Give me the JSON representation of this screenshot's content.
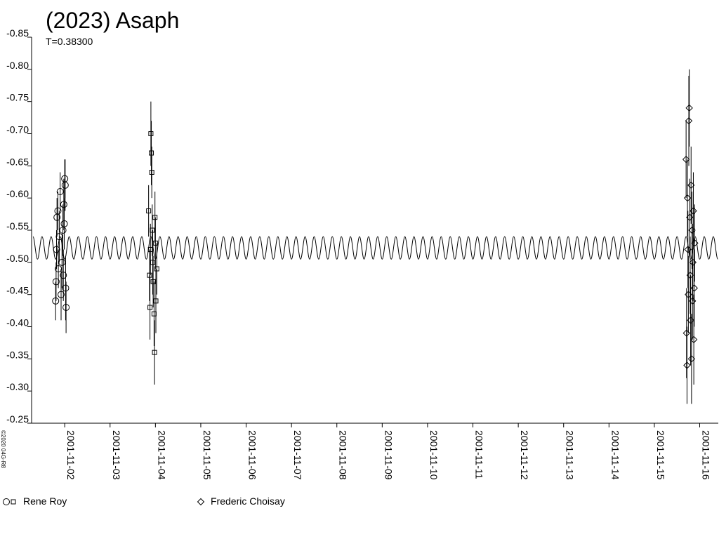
{
  "chart_data": {
    "type": "scatter",
    "title": "(2023) Asaph",
    "subtitle": "T=0.38300",
    "credit": "©2020 04G-R8",
    "xlim": [
      1.27,
      16.41
    ],
    "ylim": [
      -0.25,
      -0.85
    ],
    "xticks": [
      {
        "value": 2,
        "label": "2001-11-02"
      },
      {
        "value": 3,
        "label": "2001-11-03"
      },
      {
        "value": 4,
        "label": "2001-11-04"
      },
      {
        "value": 5,
        "label": "2001-11-05"
      },
      {
        "value": 6,
        "label": "2001-11-06"
      },
      {
        "value": 7,
        "label": "2001-11-07"
      },
      {
        "value": 8,
        "label": "2001-11-08"
      },
      {
        "value": 9,
        "label": "2001-11-09"
      },
      {
        "value": 10,
        "label": "2001-11-10"
      },
      {
        "value": 11,
        "label": "2001-11-11"
      },
      {
        "value": 12,
        "label": "2001-11-12"
      },
      {
        "value": 13,
        "label": "2001-11-13"
      },
      {
        "value": 14,
        "label": "2001-11-14"
      },
      {
        "value": 15,
        "label": "2001-11-15"
      },
      {
        "value": 16,
        "label": "2001-11-16"
      }
    ],
    "yticks": [
      -0.85,
      {
        "value": -0.8,
        "label": "-0.80"
      },
      -0.75,
      {
        "value": -0.7,
        "label": "-0.70"
      },
      -0.65,
      {
        "value": -0.6,
        "label": "-0.60"
      },
      -0.55,
      {
        "value": -0.5,
        "label": "-0.50"
      },
      -0.45,
      {
        "value": -0.4,
        "label": "-0.40"
      },
      -0.35,
      {
        "value": -0.3,
        "label": "-0.30"
      },
      -0.25
    ],
    "grid": false,
    "color": "#000000",
    "series": [
      {
        "name": "Rene Roy",
        "markers": [
          "circle",
          "circle",
          "circle",
          "circle",
          "circle",
          "circle",
          "circle",
          "circle",
          "circle",
          "circle",
          "circle",
          "circle",
          "circle",
          "circle",
          "circle",
          "circle",
          "circle",
          "circle",
          "square",
          "square",
          "square",
          "square",
          "square",
          "square",
          "square",
          "square",
          "square",
          "square",
          "square",
          "square",
          "square",
          "square",
          "square",
          "square"
        ],
        "x": [
          1.8,
          1.81,
          1.82,
          1.83,
          1.85,
          1.86,
          1.88,
          1.9,
          1.92,
          1.94,
          1.96,
          1.98,
          2.0,
          2.01,
          2.02,
          2.03,
          1.97,
          1.99,
          3.85,
          3.87,
          3.88,
          3.89,
          3.9,
          3.91,
          3.92,
          3.93,
          3.94,
          3.95,
          3.97,
          3.98,
          3.99,
          4.0,
          4.01,
          4.03
        ],
        "values": [
          -0.44,
          -0.47,
          -0.52,
          -0.57,
          -0.58,
          -0.49,
          -0.54,
          -0.61,
          -0.45,
          -0.5,
          -0.55,
          -0.59,
          -0.63,
          -0.62,
          -0.46,
          -0.43,
          -0.48,
          -0.56,
          -0.58,
          -0.48,
          -0.43,
          -0.52,
          -0.7,
          -0.67,
          -0.64,
          -0.55,
          -0.5,
          -0.47,
          -0.42,
          -0.36,
          -0.57,
          -0.53,
          -0.44,
          -0.49
        ],
        "errors": [
          0.03,
          0.03,
          0.03,
          0.03,
          0.03,
          0.03,
          0.04,
          0.03,
          0.04,
          0.04,
          0.04,
          0.04,
          0.03,
          0.04,
          0.05,
          0.04,
          0.04,
          0.04,
          0.04,
          0.04,
          0.05,
          0.04,
          0.05,
          0.05,
          0.04,
          0.04,
          0.05,
          0.04,
          0.05,
          0.05,
          0.04,
          0.04,
          0.05,
          0.04
        ]
      },
      {
        "name": "Frederic Choisay",
        "marker": "diamond",
        "x": [
          15.7,
          15.71,
          15.72,
          15.73,
          15.74,
          15.75,
          15.76,
          15.77,
          15.78,
          15.79,
          15.8,
          15.81,
          15.82,
          15.83,
          15.84,
          15.85,
          15.86,
          15.87,
          15.88,
          15.89
        ],
        "values": [
          -0.66,
          -0.39,
          -0.34,
          -0.6,
          -0.52,
          -0.45,
          -0.72,
          -0.74,
          -0.57,
          -0.48,
          -0.41,
          -0.62,
          -0.35,
          -0.55,
          -0.44,
          -0.5,
          -0.58,
          -0.38,
          -0.46,
          -0.53
        ],
        "errors": [
          0.06,
          0.07,
          0.06,
          0.06,
          0.06,
          0.06,
          0.07,
          0.06,
          0.06,
          0.06,
          0.07,
          0.06,
          0.07,
          0.06,
          0.06,
          0.06,
          0.06,
          0.07,
          0.06,
          0.06
        ]
      }
    ],
    "fit": {
      "x": [
        1.3,
        1.4,
        1.5,
        1.6,
        1.7,
        1.8,
        1.9,
        2.0,
        2.1,
        2.2,
        2.3,
        2.4,
        2.5,
        2.6,
        2.7,
        2.8,
        2.9,
        3.0,
        3.1,
        3.2,
        3.3,
        3.4,
        3.5,
        3.6,
        3.7,
        3.8,
        3.9,
        4.0,
        4.1,
        4.2,
        4.3,
        4.4,
        4.5,
        4.6,
        4.7,
        4.8,
        4.9,
        5.0,
        5.1,
        5.2,
        5.3,
        5.4,
        5.5,
        5.6,
        5.7,
        5.8,
        5.9,
        6.0,
        6.1,
        6.2,
        6.3,
        6.4,
        6.5,
        6.6,
        6.7,
        6.8,
        6.9,
        7.0,
        7.1,
        7.2,
        7.3,
        7.4,
        7.5,
        7.6,
        7.7,
        7.8,
        7.9,
        8.0,
        8.1,
        8.2,
        8.3,
        8.4,
        8.5,
        8.6,
        8.7,
        8.8,
        8.9,
        9.0,
        9.1,
        9.2,
        9.3,
        9.4,
        9.5,
        9.6,
        9.7,
        9.8,
        9.9,
        10.0,
        10.1,
        10.2,
        10.3,
        10.4,
        10.5,
        10.6,
        10.7,
        10.8,
        10.9,
        11.0,
        11.1,
        11.2,
        11.3,
        11.4,
        11.5,
        11.6,
        11.7,
        11.8,
        11.9,
        12.0,
        12.1,
        12.2,
        12.3,
        12.4,
        12.5,
        12.6,
        12.7,
        12.8,
        12.9,
        13.0,
        13.1,
        13.2,
        13.3,
        13.4,
        13.5,
        13.6,
        13.7,
        13.8,
        13.9,
        14.0,
        14.1,
        14.2,
        14.3,
        14.4,
        14.5,
        14.6,
        14.7,
        14.8,
        14.9,
        15.0,
        15.1,
        15.2,
        15.3,
        15.4,
        15.5,
        15.6,
        15.7,
        15.8,
        15.9,
        16.0,
        16.1,
        16.2,
        16.3,
        16.4
      ],
      "values": [
        -0.54,
        -0.505,
        -0.54,
        -0.505,
        -0.54,
        -0.505,
        -0.54,
        -0.505,
        -0.54,
        -0.505,
        -0.54,
        -0.505,
        -0.54,
        -0.505,
        -0.54,
        -0.505,
        -0.54,
        -0.505,
        -0.54,
        -0.505,
        -0.54,
        -0.505,
        -0.54,
        -0.505,
        -0.54,
        -0.505,
        -0.54,
        -0.505,
        -0.54,
        -0.505,
        -0.54,
        -0.505,
        -0.54,
        -0.505,
        -0.54,
        -0.505,
        -0.54,
        -0.505,
        -0.54,
        -0.505,
        -0.54,
        -0.505,
        -0.54,
        -0.505,
        -0.54,
        -0.505,
        -0.54,
        -0.505,
        -0.54,
        -0.505,
        -0.54,
        -0.505,
        -0.54,
        -0.505,
        -0.54,
        -0.505,
        -0.54,
        -0.505,
        -0.54,
        -0.505,
        -0.54,
        -0.505,
        -0.54,
        -0.505,
        -0.54,
        -0.505,
        -0.54,
        -0.505,
        -0.54,
        -0.505,
        -0.54,
        -0.505,
        -0.54,
        -0.505,
        -0.54,
        -0.505,
        -0.54,
        -0.505,
        -0.54,
        -0.505,
        -0.54,
        -0.505,
        -0.54,
        -0.505,
        -0.54,
        -0.505,
        -0.54,
        -0.505,
        -0.54,
        -0.505,
        -0.54,
        -0.505,
        -0.54,
        -0.505,
        -0.54,
        -0.505,
        -0.54,
        -0.505,
        -0.54,
        -0.505,
        -0.54,
        -0.505,
        -0.54,
        -0.505,
        -0.54,
        -0.505,
        -0.54,
        -0.505,
        -0.54,
        -0.505,
        -0.54,
        -0.505,
        -0.54,
        -0.505,
        -0.54,
        -0.505,
        -0.54,
        -0.505,
        -0.54,
        -0.505,
        -0.54,
        -0.505,
        -0.54,
        -0.505,
        -0.54,
        -0.505,
        -0.54,
        -0.505,
        -0.54,
        -0.505,
        -0.54,
        -0.505,
        -0.54,
        -0.505,
        -0.54,
        -0.505,
        -0.54,
        -0.505,
        -0.54,
        -0.505,
        -0.54,
        -0.505,
        -0.54,
        -0.505,
        -0.54,
        -0.505,
        -0.54,
        -0.505,
        -0.54,
        -0.505,
        -0.54,
        -0.505
      ]
    }
  }
}
